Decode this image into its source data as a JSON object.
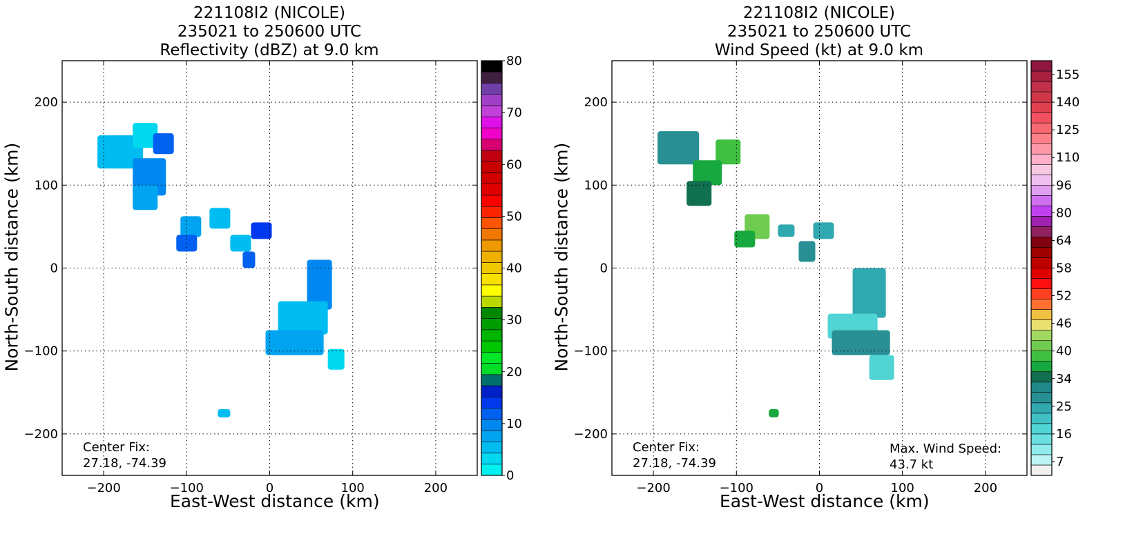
{
  "chart_data": [
    {
      "type": "heatmap",
      "title_lines": [
        "221108I2 (NICOLE)",
        "235021 to 250600 UTC",
        "Reflectivity (dBZ) at 9.0 km"
      ],
      "xlabel": "East-West distance (km)",
      "ylabel": "North-South distance (km)",
      "xlim": [
        -250,
        250
      ],
      "ylim": [
        -250,
        250
      ],
      "xticks": [
        "-200",
        "-100",
        "0",
        "100",
        "200"
      ],
      "yticks": [
        "200",
        "100",
        "0",
        "-100",
        "-200"
      ],
      "grid": true,
      "center_fix_label": "Center Fix:",
      "center_fix_value": "27.18, -74.39",
      "colorbar": {
        "tick_labels": [
          "0",
          "10",
          "20",
          "30",
          "40",
          "50",
          "60",
          "70",
          "80"
        ],
        "range": [
          0,
          80
        ],
        "colors": [
          "#00f0f0",
          "#00d8f0",
          "#00bcf0",
          "#00a4f0",
          "#0088f0",
          "#0060f0",
          "#0038f0",
          "#0020c8",
          "#00706e",
          "#00dc28",
          "#00e628",
          "#00c800",
          "#00b400",
          "#009c00",
          "#008800",
          "#b8d800",
          "#ffff00",
          "#f8e000",
          "#f0c800",
          "#f0b000",
          "#f09800",
          "#f07800",
          "#ff5400",
          "#ff2400",
          "#ff0000",
          "#e00000",
          "#d00000",
          "#c80000",
          "#c00010",
          "#d80070",
          "#f000c8",
          "#e010e8",
          "#c040d8",
          "#a040c8",
          "#7040a8",
          "#402040",
          "#000000"
        ]
      },
      "echo_cells": [
        {
          "x": -180,
          "y": 140,
          "w": 55,
          "h": 40,
          "color": "#00bcf0"
        },
        {
          "x": -150,
          "y": 160,
          "w": 30,
          "h": 30,
          "color": "#00d8f0"
        },
        {
          "x": -128,
          "y": 150,
          "w": 25,
          "h": 25,
          "color": "#0060f0"
        },
        {
          "x": -145,
          "y": 110,
          "w": 40,
          "h": 45,
          "color": "#0088f0"
        },
        {
          "x": -150,
          "y": 85,
          "w": 30,
          "h": 30,
          "color": "#00a4f0"
        },
        {
          "x": -95,
          "y": 50,
          "w": 25,
          "h": 25,
          "color": "#00a4f0"
        },
        {
          "x": -60,
          "y": 60,
          "w": 25,
          "h": 25,
          "color": "#00bcf0"
        },
        {
          "x": -100,
          "y": 30,
          "w": 25,
          "h": 20,
          "color": "#0060f0"
        },
        {
          "x": -10,
          "y": 45,
          "w": 25,
          "h": 20,
          "color": "#0038f0"
        },
        {
          "x": -35,
          "y": 30,
          "w": 25,
          "h": 20,
          "color": "#00bcf0"
        },
        {
          "x": -25,
          "y": 10,
          "w": 15,
          "h": 20,
          "color": "#0060f0"
        },
        {
          "x": 60,
          "y": -20,
          "w": 30,
          "h": 60,
          "color": "#0088f0"
        },
        {
          "x": 40,
          "y": -60,
          "w": 60,
          "h": 40,
          "color": "#00bcf0"
        },
        {
          "x": 30,
          "y": -90,
          "w": 70,
          "h": 30,
          "color": "#00a4f0"
        },
        {
          "x": 80,
          "y": -110,
          "w": 20,
          "h": 25,
          "color": "#00d8f0"
        },
        {
          "x": -55,
          "y": -175,
          "w": 15,
          "h": 10,
          "color": "#00bcf0"
        }
      ]
    },
    {
      "type": "heatmap",
      "title_lines": [
        "221108I2 (NICOLE)",
        "235021 to 250600 UTC",
        "Wind Speed (kt) at 9.0 km"
      ],
      "xlabel": "East-West distance (km)",
      "ylabel": "North-South distance (km)",
      "xlim": [
        -250,
        250
      ],
      "ylim": [
        -250,
        250
      ],
      "xticks": [
        "-200",
        "-100",
        "0",
        "100",
        "200"
      ],
      "yticks": [
        "200",
        "100",
        "0",
        "-100",
        "-200"
      ],
      "grid": true,
      "center_fix_label": "Center Fix:",
      "center_fix_value": "27.18, -74.39",
      "max_wind_label": "Max. Wind Speed:",
      "max_wind_value": "43.7 kt",
      "colorbar": {
        "tick_labels": [
          "7",
          "16",
          "25",
          "34",
          "40",
          "46",
          "52",
          "58",
          "64",
          "80",
          "96",
          "110",
          "125",
          "140",
          "155"
        ],
        "colors": [
          "#f0f0f0",
          "#bff4f4",
          "#90ecec",
          "#6ce0e0",
          "#50d4d4",
          "#40c0c4",
          "#30a8b0",
          "#289094",
          "#208888",
          "#107050",
          "#18a840",
          "#40c040",
          "#70cc50",
          "#a0d860",
          "#e8e070",
          "#f0c040",
          "#ff7030",
          "#ff4020",
          "#ff1010",
          "#e00000",
          "#c00000",
          "#a00000",
          "#800010",
          "#902060",
          "#a020b0",
          "#c040f0",
          "#d070f0",
          "#e0a0f0",
          "#f0c0f0",
          "#f8c8e0",
          "#ffb0c8",
          "#ff98a8",
          "#ff8088",
          "#f86870",
          "#f05060",
          "#e04050",
          "#d03848",
          "#c03048",
          "#a82040",
          "#901840"
        ]
      },
      "echo_cells": [
        {
          "x": -170,
          "y": 145,
          "w": 50,
          "h": 40,
          "color": "#289094"
        },
        {
          "x": -110,
          "y": 140,
          "w": 30,
          "h": 30,
          "color": "#40c040"
        },
        {
          "x": -135,
          "y": 115,
          "w": 35,
          "h": 30,
          "color": "#18a840"
        },
        {
          "x": -145,
          "y": 90,
          "w": 30,
          "h": 30,
          "color": "#107050"
        },
        {
          "x": -75,
          "y": 50,
          "w": 30,
          "h": 30,
          "color": "#70cc50"
        },
        {
          "x": -90,
          "y": 35,
          "w": 25,
          "h": 20,
          "color": "#18a840"
        },
        {
          "x": -40,
          "y": 45,
          "w": 20,
          "h": 15,
          "color": "#30a8b0"
        },
        {
          "x": 5,
          "y": 45,
          "w": 25,
          "h": 20,
          "color": "#30a8b0"
        },
        {
          "x": -15,
          "y": 20,
          "w": 20,
          "h": 25,
          "color": "#289094"
        },
        {
          "x": 60,
          "y": -30,
          "w": 40,
          "h": 60,
          "color": "#30a8b0"
        },
        {
          "x": 40,
          "y": -70,
          "w": 60,
          "h": 30,
          "color": "#50d4d4"
        },
        {
          "x": 50,
          "y": -90,
          "w": 70,
          "h": 30,
          "color": "#289094"
        },
        {
          "x": 75,
          "y": -120,
          "w": 30,
          "h": 30,
          "color": "#50d4d4"
        },
        {
          "x": -55,
          "y": -175,
          "w": 12,
          "h": 10,
          "color": "#18a840"
        }
      ]
    }
  ]
}
